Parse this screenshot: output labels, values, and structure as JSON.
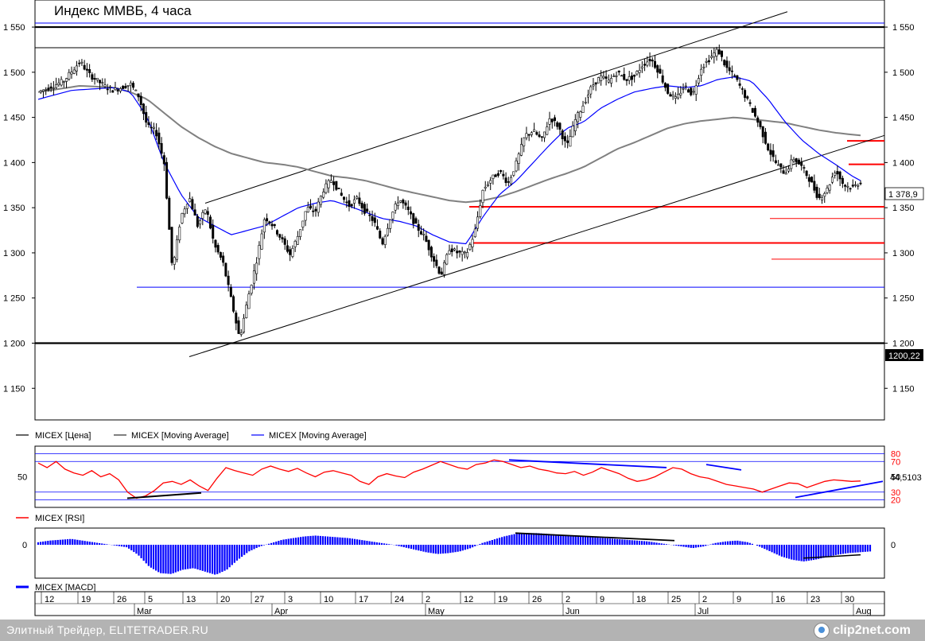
{
  "title": "Индекс ММВБ, 4 часа",
  "footer": {
    "text": "Элитный Трейдер, ELITETRADER.RU",
    "logo": "clip2net.com"
  },
  "chart_data": [
    {
      "type": "candlestick",
      "title": "Индекс ММВБ, 4 часа",
      "y_ticks": [
        1550,
        1500,
        1450,
        1400,
        1350,
        1300,
        1250,
        1200,
        1150
      ],
      "y_tick_labels": [
        "1 550",
        "1 500",
        "1 450",
        "1 400",
        "1 350",
        "1 300",
        "1 250",
        "1 200",
        "1 150"
      ],
      "ylim": [
        1115,
        1580
      ],
      "last_price_label": "1 378,9",
      "level_label": "1200,22",
      "legend": [
        "MICEX [Цена]",
        "MICEX [Moving Average]",
        "MICEX [Moving Average]"
      ],
      "legend_colors": [
        "#000000",
        "#808080",
        "#0000ff"
      ],
      "horizontal_levels": [
        {
          "value": 1550,
          "color": "#000000"
        },
        {
          "value": 1200,
          "color": "#000000"
        },
        {
          "value": 1262,
          "color": "#0000ff"
        },
        {
          "value": 1351,
          "color": "#ff0000"
        },
        {
          "value": 1311,
          "color": "#ff0000"
        },
        {
          "value": 1338,
          "color": "#ff0000"
        },
        {
          "value": 1293,
          "color": "#ff0000"
        },
        {
          "value": 1424,
          "color": "#ff0000"
        },
        {
          "value": 1398,
          "color": "#ff0000"
        }
      ],
      "price_anchors": [
        [
          0,
          1478
        ],
        [
          3,
          1490
        ],
        [
          5,
          1512
        ],
        [
          6,
          1498
        ],
        [
          8,
          1484
        ],
        [
          9,
          1480
        ],
        [
          11,
          1487
        ],
        [
          12,
          1473
        ],
        [
          13,
          1440
        ],
        [
          14,
          1435
        ],
        [
          15,
          1400
        ],
        [
          16,
          1280
        ],
        [
          17,
          1340
        ],
        [
          18,
          1362
        ],
        [
          19,
          1330
        ],
        [
          20,
          1350
        ],
        [
          21,
          1308
        ],
        [
          22,
          1290
        ],
        [
          23,
          1248
        ],
        [
          24,
          1205
        ],
        [
          25,
          1250
        ],
        [
          26,
          1290
        ],
        [
          27,
          1340
        ],
        [
          28,
          1330
        ],
        [
          29,
          1315
        ],
        [
          30,
          1298
        ],
        [
          31,
          1320
        ],
        [
          32,
          1350
        ],
        [
          33,
          1345
        ],
        [
          34,
          1370
        ],
        [
          35,
          1382
        ],
        [
          36,
          1365
        ],
        [
          37,
          1352
        ],
        [
          38,
          1360
        ],
        [
          39,
          1345
        ],
        [
          40,
          1335
        ],
        [
          41,
          1310
        ],
        [
          42,
          1340
        ],
        [
          43,
          1360
        ],
        [
          44,
          1348
        ],
        [
          45,
          1330
        ],
        [
          46,
          1318
        ],
        [
          47,
          1295
        ],
        [
          48,
          1275
        ],
        [
          49,
          1305
        ],
        [
          50,
          1300
        ],
        [
          51,
          1298
        ],
        [
          52,
          1322
        ],
        [
          53,
          1370
        ],
        [
          54,
          1382
        ],
        [
          55,
          1390
        ],
        [
          56,
          1377
        ],
        [
          57,
          1400
        ],
        [
          58,
          1430
        ],
        [
          59,
          1435
        ],
        [
          60,
          1425
        ],
        [
          61,
          1450
        ],
        [
          62,
          1440
        ],
        [
          63,
          1417
        ],
        [
          64,
          1447
        ],
        [
          65,
          1465
        ],
        [
          66,
          1485
        ],
        [
          67,
          1495
        ],
        [
          68,
          1490
        ],
        [
          69,
          1500
        ],
        [
          70,
          1492
        ],
        [
          71,
          1495
        ],
        [
          72,
          1508
        ],
        [
          73,
          1515
        ],
        [
          74,
          1500
        ],
        [
          75,
          1478
        ],
        [
          76,
          1470
        ],
        [
          77,
          1485
        ],
        [
          78,
          1475
        ],
        [
          79,
          1505
        ],
        [
          80,
          1515
        ],
        [
          81,
          1525
        ],
        [
          82,
          1505
        ],
        [
          83,
          1495
        ],
        [
          84,
          1478
        ],
        [
          85,
          1460
        ],
        [
          86,
          1440
        ],
        [
          87,
          1415
        ],
        [
          88,
          1398
        ],
        [
          89,
          1388
        ],
        [
          90,
          1405
        ],
        [
          91,
          1395
        ],
        [
          92,
          1380
        ],
        [
          93,
          1360
        ],
        [
          94,
          1370
        ],
        [
          95,
          1392
        ],
        [
          96,
          1375
        ],
        [
          97,
          1372
        ],
        [
          98,
          1379
        ]
      ],
      "ma_blue_anchors": [
        [
          0,
          1470
        ],
        [
          4,
          1480
        ],
        [
          9,
          1483
        ],
        [
          11,
          1478
        ],
        [
          13,
          1450
        ],
        [
          15,
          1400
        ],
        [
          17,
          1365
        ],
        [
          19,
          1340
        ],
        [
          21,
          1330
        ],
        [
          23,
          1320
        ],
        [
          25,
          1325
        ],
        [
          27,
          1330
        ],
        [
          29,
          1340
        ],
        [
          31,
          1350
        ],
        [
          33,
          1355
        ],
        [
          35,
          1358
        ],
        [
          37,
          1352
        ],
        [
          39,
          1345
        ],
        [
          41,
          1338
        ],
        [
          43,
          1335
        ],
        [
          45,
          1330
        ],
        [
          47,
          1320
        ],
        [
          49,
          1312
        ],
        [
          51,
          1310
        ],
        [
          53,
          1340
        ],
        [
          55,
          1365
        ],
        [
          57,
          1380
        ],
        [
          59,
          1400
        ],
        [
          61,
          1420
        ],
        [
          63,
          1438
        ],
        [
          65,
          1445
        ],
        [
          67,
          1460
        ],
        [
          69,
          1470
        ],
        [
          71,
          1478
        ],
        [
          73,
          1482
        ],
        [
          75,
          1485
        ],
        [
          77,
          1483
        ],
        [
          79,
          1485
        ],
        [
          81,
          1492
        ],
        [
          83,
          1495
        ],
        [
          85,
          1490
        ],
        [
          87,
          1470
        ],
        [
          89,
          1445
        ],
        [
          91,
          1425
        ],
        [
          93,
          1410
        ],
        [
          95,
          1398
        ],
        [
          97,
          1385
        ],
        [
          98,
          1380
        ]
      ],
      "ma_gray_anchors": [
        [
          0,
          1478
        ],
        [
          5,
          1485
        ],
        [
          9,
          1483
        ],
        [
          11,
          1478
        ],
        [
          13,
          1470
        ],
        [
          15,
          1455
        ],
        [
          17,
          1440
        ],
        [
          19,
          1428
        ],
        [
          21,
          1418
        ],
        [
          23,
          1410
        ],
        [
          25,
          1405
        ],
        [
          27,
          1400
        ],
        [
          29,
          1398
        ],
        [
          31,
          1395
        ],
        [
          33,
          1390
        ],
        [
          35,
          1385
        ],
        [
          37,
          1383
        ],
        [
          39,
          1380
        ],
        [
          41,
          1375
        ],
        [
          43,
          1370
        ],
        [
          45,
          1366
        ],
        [
          47,
          1362
        ],
        [
          49,
          1358
        ],
        [
          51,
          1356
        ],
        [
          53,
          1358
        ],
        [
          55,
          1362
        ],
        [
          57,
          1368
        ],
        [
          59,
          1375
        ],
        [
          61,
          1382
        ],
        [
          63,
          1388
        ],
        [
          65,
          1395
        ],
        [
          67,
          1405
        ],
        [
          69,
          1415
        ],
        [
          71,
          1422
        ],
        [
          73,
          1430
        ],
        [
          75,
          1438
        ],
        [
          77,
          1443
        ],
        [
          79,
          1446
        ],
        [
          81,
          1448
        ],
        [
          83,
          1450
        ],
        [
          85,
          1448
        ],
        [
          87,
          1446
        ],
        [
          89,
          1444
        ],
        [
          91,
          1440
        ],
        [
          93,
          1436
        ],
        [
          95,
          1433
        ],
        [
          98,
          1430
        ]
      ]
    },
    {
      "type": "line",
      "title": "MICEX [RSI]",
      "y_ticks": [
        80,
        70,
        50,
        30,
        20
      ],
      "y_tick_labels": [
        "80",
        "70",
        "50",
        "30",
        "20"
      ],
      "last_value_label": "44,5103",
      "ylim": [
        10,
        90
      ],
      "values": [
        68,
        62,
        70,
        60,
        55,
        52,
        58,
        50,
        54,
        46,
        30,
        22,
        25,
        32,
        42,
        44,
        40,
        46,
        38,
        32,
        48,
        62,
        58,
        55,
        52,
        60,
        64,
        60,
        57,
        61,
        55,
        50,
        56,
        58,
        55,
        52,
        44,
        40,
        50,
        54,
        51,
        49,
        56,
        60,
        65,
        70,
        66,
        62,
        60,
        66,
        68,
        72,
        70,
        66,
        62,
        64,
        60,
        58,
        55,
        54,
        57,
        52,
        56,
        62,
        58,
        54,
        48,
        44,
        46,
        50,
        56,
        62,
        60,
        54,
        50,
        48,
        44,
        40,
        38,
        36,
        34,
        30,
        34,
        38,
        42,
        41,
        36,
        40,
        44,
        46,
        45,
        44,
        44.5
      ]
    },
    {
      "type": "bar",
      "title": "MICEX [MACD]",
      "y_ticks": [
        0
      ],
      "y_tick_labels": [
        "0"
      ],
      "ylim": [
        -40,
        20
      ],
      "values": [
        3,
        5,
        6,
        7,
        5,
        3,
        1,
        -1,
        -3,
        -12,
        -26,
        -34,
        -35,
        -30,
        -28,
        -32,
        -36,
        -30,
        -18,
        -8,
        -2,
        2,
        6,
        8,
        10,
        11,
        10,
        9,
        8,
        6,
        4,
        2,
        0,
        -3,
        -6,
        -9,
        -11,
        -10,
        -8,
        -4,
        2,
        6,
        10,
        13,
        14,
        14,
        13,
        12,
        11,
        10,
        9,
        8,
        7,
        6,
        5,
        4,
        2,
        0,
        -2,
        -4,
        -2,
        2,
        4,
        5,
        3,
        -2,
        -8,
        -14,
        -18,
        -20,
        -18,
        -15,
        -12,
        -10,
        -9,
        -8
      ]
    }
  ],
  "x_axis": {
    "day_labels": [
      "12",
      "19",
      "26",
      "5",
      "13",
      "20",
      "27",
      "3",
      "10",
      "17",
      "24",
      "2",
      "12",
      "19",
      "26",
      "2",
      "9",
      "18",
      "25",
      "2",
      "9",
      "16",
      "23",
      "30"
    ],
    "month_labels": [
      "Mar",
      "Apr",
      "May",
      "Jun",
      "Jul",
      "Aug"
    ]
  }
}
